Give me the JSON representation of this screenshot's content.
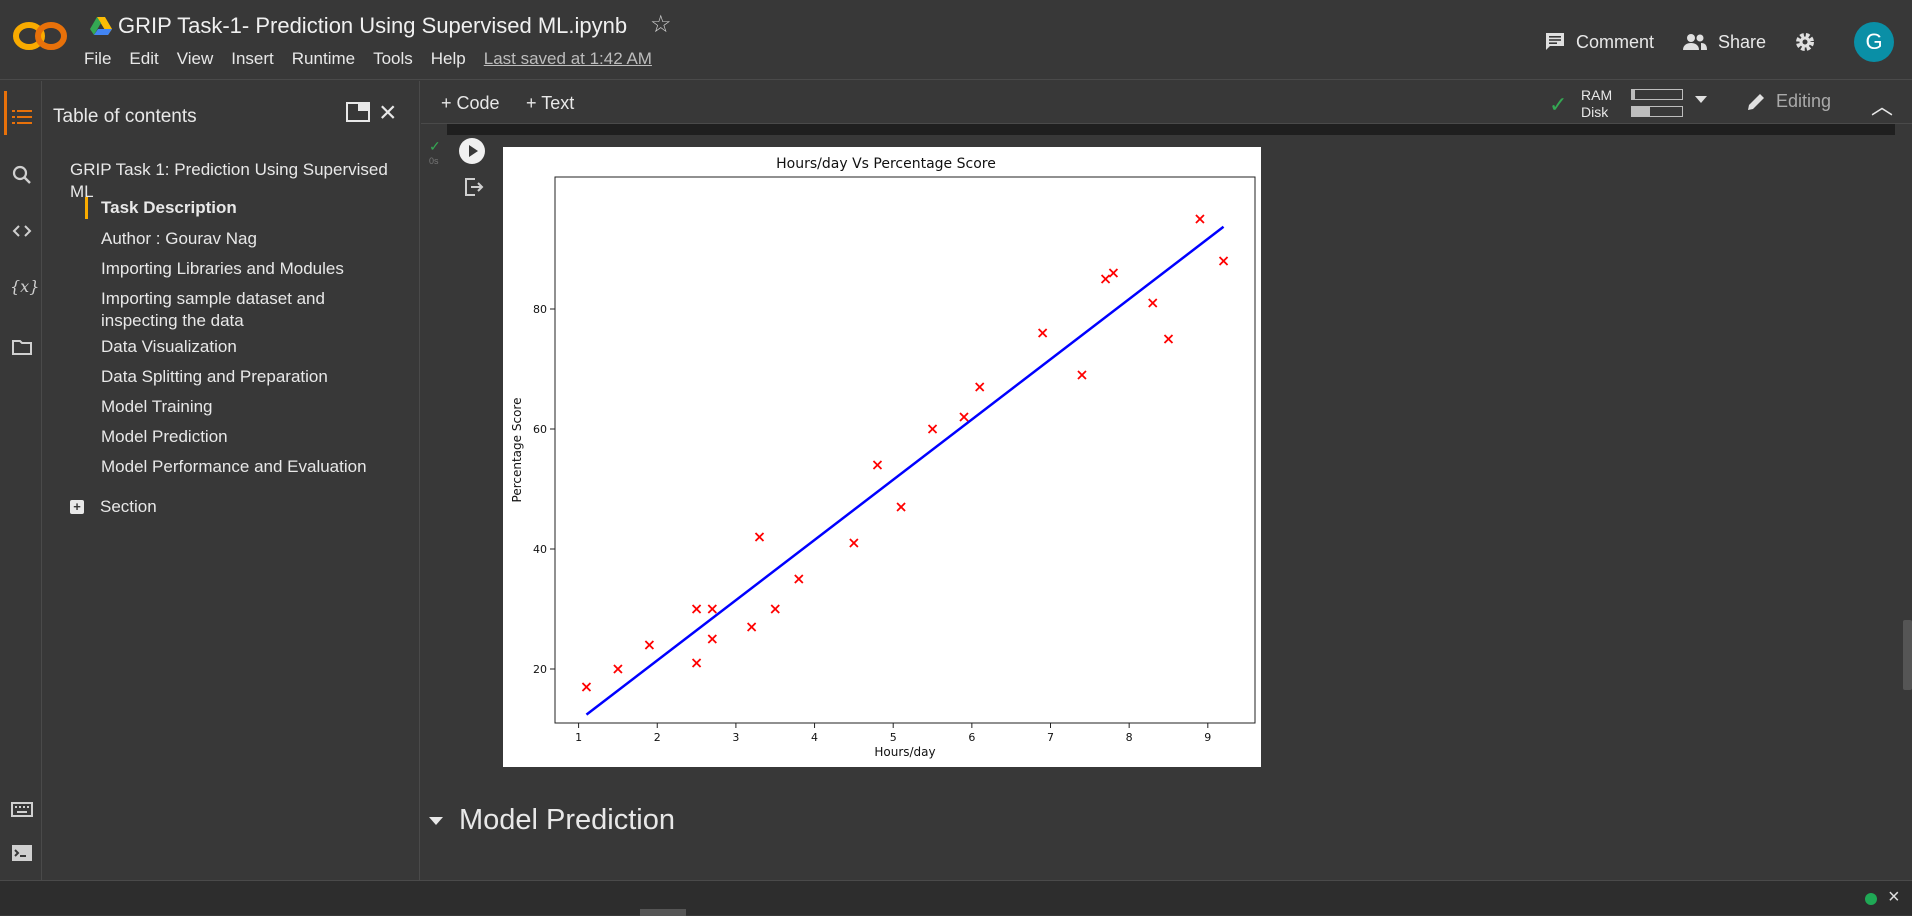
{
  "header": {
    "title": "GRIP Task-1- Prediction Using Supervised ML.ipynb",
    "menu": [
      "File",
      "Edit",
      "View",
      "Insert",
      "Runtime",
      "Tools",
      "Help"
    ],
    "last_saved": "Last saved at 1:42 AM",
    "comment_label": "Comment",
    "share_label": "Share",
    "avatar_letter": "G",
    "avatar_color": "#0a8fa6",
    "logo_color": "#f9ab00"
  },
  "toc": {
    "title": "Table of contents",
    "main_heading": "GRIP Task 1: Prediction Using Supervised ML",
    "items": [
      "Task Description",
      "Author : Gourav Nag",
      "Importing Libraries and Modules",
      "Importing sample dataset and inspecting the data",
      "Data Visualization",
      "Data Splitting and Preparation",
      "Model Training",
      "Model Prediction",
      "Model Performance and Evaluation"
    ],
    "selected_index": 0,
    "section_label": "Section"
  },
  "toolbar": {
    "code_label": "+ Code",
    "text_label": "+ Text",
    "ram_label": "RAM",
    "disk_label": "Disk",
    "ram_usage": 0.05,
    "disk_usage": 0.35,
    "editing_label": "Editing"
  },
  "cell": {
    "exec_time": "0s"
  },
  "chart_data": {
    "type": "scatter",
    "title": "Hours/day Vs Percentage Score",
    "xlabel": "Hours/day",
    "ylabel": "Percentage Score",
    "xlim": [
      0.7,
      9.6
    ],
    "ylim": [
      11,
      102
    ],
    "xticks": [
      1,
      2,
      3,
      4,
      5,
      6,
      7,
      8,
      9
    ],
    "yticks": [
      20,
      40,
      60,
      80
    ],
    "points": [
      [
        1.1,
        17
      ],
      [
        1.5,
        20
      ],
      [
        1.9,
        24
      ],
      [
        2.5,
        21
      ],
      [
        2.5,
        30
      ],
      [
        2.7,
        25
      ],
      [
        2.7,
        30
      ],
      [
        3.2,
        27
      ],
      [
        3.3,
        42
      ],
      [
        3.5,
        30
      ],
      [
        3.8,
        35
      ],
      [
        4.5,
        41
      ],
      [
        4.8,
        54
      ],
      [
        5.1,
        47
      ],
      [
        5.5,
        60
      ],
      [
        5.9,
        62
      ],
      [
        6.1,
        67
      ],
      [
        6.9,
        76
      ],
      [
        7.4,
        69
      ],
      [
        7.7,
        85
      ],
      [
        7.8,
        86
      ],
      [
        8.3,
        81
      ],
      [
        8.5,
        75
      ],
      [
        8.9,
        95
      ],
      [
        9.2,
        88
      ]
    ],
    "point_color": "#ff0000",
    "regression_line": [
      [
        1.1,
        12.4
      ],
      [
        9.2,
        93.7
      ]
    ],
    "line_color": "#0000ff"
  },
  "next_section": "Model Prediction"
}
